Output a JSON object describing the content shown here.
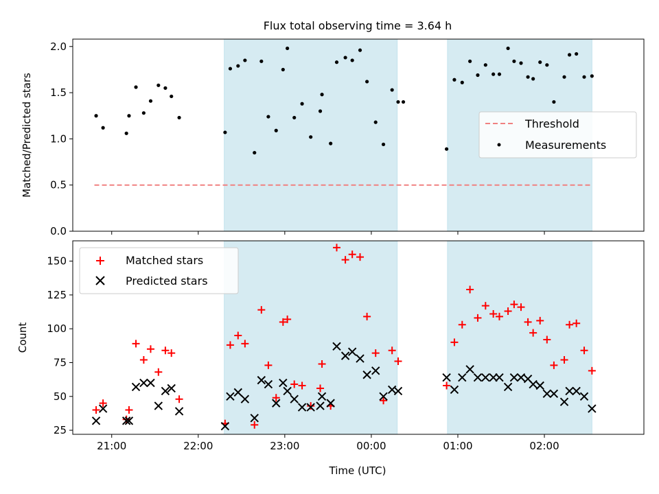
{
  "chart_data": {
    "type": "scatter",
    "title": "Flux total observing time = 3.64 h",
    "xlabel": "Time (UTC)",
    "x_unit": "hours since 20:00 UTC",
    "xlim": [
      0.55,
      7.15
    ],
    "x_ticks": [
      1,
      2,
      3,
      4,
      5,
      6
    ],
    "x_tick_labels": [
      "21:00",
      "22:00",
      "23:00",
      "00:00",
      "01:00",
      "02:00"
    ],
    "shaded_intervals": [
      [
        2.3,
        4.3
      ],
      [
        4.88,
        6.55
      ]
    ],
    "panels": [
      {
        "id": "ratio",
        "ylabel": "Matched/Predicted stars",
        "ylim": [
          0,
          2.08
        ],
        "y_ticks": [
          0.0,
          0.5,
          1.0,
          1.5,
          2.0
        ],
        "y_tick_labels": [
          "0.0",
          "0.5",
          "1.0",
          "1.5",
          "2.0"
        ],
        "legend_position": "center-right",
        "threshold": {
          "name": "Threshold",
          "value": 0.5,
          "x_range": [
            0.8,
            6.55
          ],
          "color": "#f08080"
        },
        "series": [
          {
            "name": "Measurements",
            "marker": "dot",
            "color": "#000000",
            "x": [
              0.82,
              0.9,
              1.17,
              1.2,
              1.28,
              1.37,
              1.45,
              1.54,
              1.62,
              1.69,
              1.78,
              2.31,
              2.37,
              2.46,
              2.54,
              2.65,
              2.73,
              2.81,
              2.9,
              2.98,
              3.03,
              3.11,
              3.2,
              3.3,
              3.41,
              3.43,
              3.53,
              3.6,
              3.7,
              3.78,
              3.87,
              3.95,
              4.05,
              4.14,
              4.24,
              4.31,
              4.37,
              4.87,
              4.96,
              5.05,
              5.14,
              5.23,
              5.32,
              5.41,
              5.48,
              5.58,
              5.65,
              5.73,
              5.81,
              5.87,
              5.95,
              6.03,
              6.11,
              6.23,
              6.29,
              6.37,
              6.46,
              6.55
            ],
            "y": [
              1.25,
              1.12,
              1.06,
              1.25,
              1.56,
              1.28,
              1.41,
              1.58,
              1.55,
              1.46,
              1.23,
              1.07,
              1.76,
              1.79,
              1.85,
              0.85,
              1.84,
              1.24,
              1.09,
              1.75,
              1.98,
              1.23,
              1.38,
              1.02,
              1.3,
              1.48,
              0.95,
              1.83,
              1.88,
              1.85,
              1.96,
              1.62,
              1.18,
              0.94,
              1.53,
              1.4,
              1.4,
              0.89,
              1.64,
              1.61,
              1.84,
              1.69,
              1.8,
              1.7,
              1.7,
              1.98,
              1.84,
              1.82,
              1.67,
              1.65,
              1.83,
              1.8,
              1.4,
              1.67,
              1.91,
              1.92,
              1.67,
              1.68
            ]
          }
        ]
      },
      {
        "id": "count",
        "ylabel": "Count",
        "ylim": [
          22,
          165
        ],
        "y_ticks": [
          25,
          50,
          75,
          100,
          125,
          150
        ],
        "y_tick_labels": [
          "25",
          "50",
          "75",
          "100",
          "125",
          "150"
        ],
        "legend_position": "upper-left",
        "series": [
          {
            "name": "Matched stars",
            "marker": "plus",
            "color": "#ff0000",
            "x": [
              0.82,
              0.9,
              1.17,
              1.2,
              1.28,
              1.37,
              1.45,
              1.54,
              1.62,
              1.69,
              1.78,
              2.31,
              2.37,
              2.46,
              2.54,
              2.65,
              2.73,
              2.81,
              2.9,
              2.98,
              3.03,
              3.11,
              3.2,
              3.3,
              3.41,
              3.43,
              3.53,
              3.6,
              3.7,
              3.78,
              3.87,
              3.95,
              4.05,
              4.14,
              4.24,
              4.31,
              4.87,
              4.96,
              5.05,
              5.14,
              5.23,
              5.32,
              5.41,
              5.48,
              5.58,
              5.65,
              5.73,
              5.81,
              5.87,
              5.95,
              6.03,
              6.11,
              6.23,
              6.29,
              6.37,
              6.46,
              6.55
            ],
            "y": [
              40,
              45,
              33,
              40,
              89,
              77,
              85,
              68,
              84,
              82,
              48,
              30,
              88,
              95,
              89,
              29,
              114,
              73,
              49,
              105,
              107,
              59,
              58,
              43,
              56,
              74,
              43,
              160,
              151,
              155,
              153,
              109,
              82,
              47,
              84,
              76,
              58,
              90,
              103,
              129,
              108,
              117,
              111,
              109,
              113,
              118,
              116,
              105,
              97,
              106,
              92,
              73,
              77,
              103,
              104,
              84,
              69
            ]
          },
          {
            "name": "Predicted stars",
            "marker": "x",
            "color": "#000000",
            "x": [
              0.82,
              0.9,
              1.17,
              1.2,
              1.28,
              1.37,
              1.45,
              1.54,
              1.62,
              1.69,
              1.78,
              2.31,
              2.37,
              2.46,
              2.54,
              2.65,
              2.73,
              2.81,
              2.9,
              2.98,
              3.03,
              3.11,
              3.2,
              3.3,
              3.41,
              3.43,
              3.53,
              3.6,
              3.7,
              3.78,
              3.87,
              3.95,
              4.05,
              4.14,
              4.24,
              4.31,
              4.87,
              4.96,
              5.05,
              5.14,
              5.23,
              5.32,
              5.41,
              5.48,
              5.58,
              5.65,
              5.73,
              5.81,
              5.87,
              5.95,
              6.03,
              6.11,
              6.23,
              6.29,
              6.37,
              6.46,
              6.55
            ],
            "y": [
              32,
              41,
              32,
              32,
              57,
              60,
              60,
              43,
              54,
              56,
              39,
              28,
              50,
              53,
              48,
              34,
              62,
              59,
              45,
              60,
              54,
              48,
              42,
              42,
              43,
              50,
              45,
              87,
              80,
              83,
              78,
              66,
              69,
              50,
              55,
              54,
              64,
              55,
              64,
              70,
              64,
              64,
              64,
              64,
              57,
              64,
              64,
              63,
              59,
              58,
              52,
              52,
              46,
              54,
              54,
              50,
              41
            ]
          }
        ]
      }
    ]
  }
}
